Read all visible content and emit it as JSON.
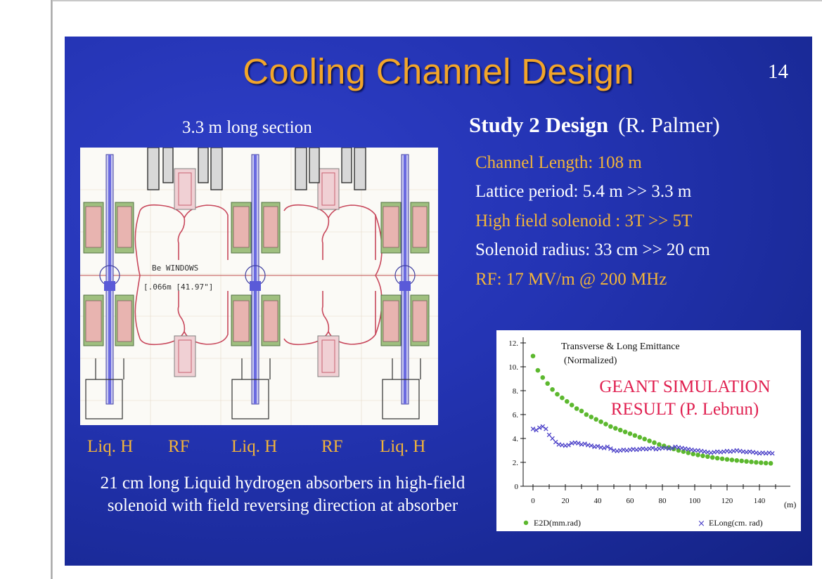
{
  "slide": {
    "title": "Cooling Channel Design",
    "page_number": "14",
    "section_label": "3.3 m long section",
    "drawing_labels": [
      "Liq. H",
      "RF",
      "Liq. H",
      "RF",
      "Liq. H"
    ],
    "drawing_annotations": {
      "windows_1": "Be  WINDOWS",
      "windows_2": "[.066m  [41.97\"]"
    },
    "caption_line1": "21 cm long Liquid hydrogen absorbers in high-field",
    "caption_line2": "solenoid with field reversing direction at absorber",
    "study_title": "Study 2 Design",
    "study_author": "(R. Palmer)",
    "specs": [
      {
        "text": "Channel Length:  108 m",
        "color": "#f2b43a"
      },
      {
        "text": "Lattice period: 5.4 m >> 3.3 m",
        "color": "#ffffff"
      },
      {
        "text": "High field solenoid :  3T >> 5T",
        "color": "#f2b43a"
      },
      {
        "text": "Solenoid radius:  33 cm >> 20 cm",
        "color": "#ffffff"
      },
      {
        "text": "RF:   17 MV/m  @  200 MHz",
        "color": "#f2b43a"
      }
    ],
    "sim_label_1": "GEANT SIMULATION",
    "sim_label_2": "RESULT (P. Lebrun)"
  },
  "colors": {
    "title": "#f2a52a",
    "highlight_text": "#f2b43a",
    "sim_label": "#e02050",
    "series_e2d": "#5cb82e",
    "series_elong": "#4a3fc8"
  },
  "chart_data": {
    "type": "scatter",
    "title": "Transverse & Long  Emittance",
    "subtitle": "(Normalized)",
    "xlabel": "(m)",
    "ylabel": "",
    "xlim": [
      0,
      150
    ],
    "ylim": [
      0,
      12
    ],
    "x_ticks": [
      0,
      20,
      40,
      60,
      80,
      100,
      120,
      140
    ],
    "y_ticks": [
      0,
      2,
      4,
      6,
      8,
      10,
      12
    ],
    "y_tick_labels": [
      "0",
      "2.",
      "4.",
      "6.",
      "8.",
      "10.",
      "12."
    ],
    "grid": false,
    "legend_position": "bottom",
    "series": [
      {
        "name": "E2D(mm.rad)",
        "marker": "dot",
        "color": "#5cb82e",
        "x": [
          0,
          3,
          6,
          9,
          12,
          15,
          18,
          21,
          24,
          27,
          30,
          33,
          36,
          39,
          42,
          45,
          48,
          51,
          54,
          57,
          60,
          63,
          66,
          69,
          72,
          75,
          78,
          81,
          84,
          87,
          90,
          93,
          96,
          99,
          102,
          105,
          108,
          111,
          114,
          117,
          120,
          123,
          126,
          129,
          132,
          135,
          138,
          141,
          144,
          147
        ],
        "y": [
          10.9,
          9.7,
          9.1,
          8.6,
          8.1,
          7.7,
          7.4,
          7.1,
          6.8,
          6.5,
          6.3,
          6.0,
          5.8,
          5.6,
          5.4,
          5.2,
          5.0,
          4.85,
          4.7,
          4.55,
          4.4,
          4.25,
          4.1,
          3.95,
          3.8,
          3.65,
          3.5,
          3.38,
          3.25,
          3.12,
          3.0,
          2.9,
          2.8,
          2.7,
          2.62,
          2.55,
          2.48,
          2.41,
          2.35,
          2.3,
          2.25,
          2.2,
          2.16,
          2.12,
          2.08,
          2.04,
          2.0,
          1.97,
          1.94,
          1.92
        ]
      },
      {
        "name": "ELong(cm. rad)",
        "marker": "x",
        "color": "#4a3fc8",
        "x": [
          0,
          2,
          4,
          6,
          8,
          10,
          12,
          14,
          16,
          18,
          20,
          22,
          24,
          26,
          28,
          30,
          32,
          34,
          36,
          38,
          40,
          42,
          44,
          46,
          48,
          50,
          52,
          54,
          56,
          58,
          60,
          62,
          64,
          66,
          68,
          70,
          72,
          74,
          76,
          78,
          80,
          82,
          84,
          86,
          88,
          90,
          92,
          94,
          96,
          98,
          100,
          102,
          104,
          106,
          108,
          110,
          112,
          114,
          116,
          118,
          120,
          122,
          124,
          126,
          128,
          130,
          132,
          134,
          136,
          138,
          140,
          142,
          144,
          146,
          148
        ],
        "y": [
          4.8,
          4.7,
          4.9,
          5.0,
          4.8,
          4.3,
          4.0,
          3.7,
          3.5,
          3.45,
          3.4,
          3.45,
          3.6,
          3.65,
          3.6,
          3.5,
          3.55,
          3.45,
          3.4,
          3.3,
          3.35,
          3.25,
          3.2,
          3.3,
          3.15,
          3.0,
          2.95,
          3.0,
          3.05,
          3.0,
          3.05,
          3.1,
          3.05,
          3.1,
          3.15,
          3.1,
          3.15,
          3.2,
          3.1,
          3.15,
          3.2,
          3.2,
          3.15,
          3.2,
          3.3,
          3.25,
          3.2,
          3.15,
          3.1,
          3.05,
          3.0,
          3.0,
          2.95,
          2.9,
          2.85,
          2.8,
          2.85,
          2.9,
          2.85,
          2.9,
          2.95,
          2.9,
          2.95,
          3.0,
          2.95,
          2.9,
          2.85,
          2.9,
          2.85,
          2.8,
          2.75,
          2.8,
          2.75,
          2.8,
          2.75
        ]
      }
    ]
  }
}
